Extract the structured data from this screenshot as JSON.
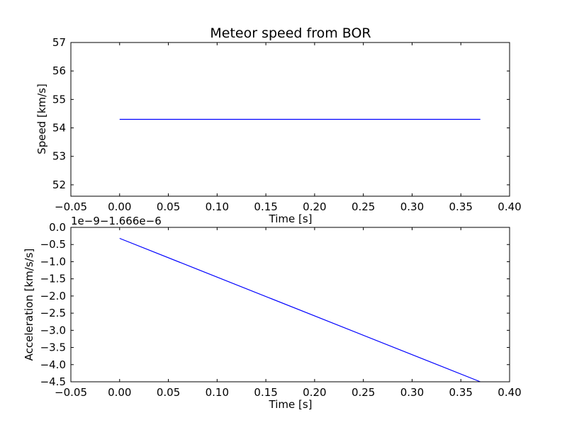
{
  "chart_data": [
    {
      "type": "line",
      "title": "Meteor speed from  BOR",
      "xlabel": "Time [s]",
      "ylabel": "Speed [km/s]",
      "xlim": [
        -0.05,
        0.4
      ],
      "ylim": [
        51.6,
        57
      ],
      "xticks": [
        -0.05,
        0.0,
        0.05,
        0.1,
        0.15,
        0.2,
        0.25,
        0.3,
        0.35,
        0.4
      ],
      "xtick_labels": [
        "−0.05",
        "0.00",
        "0.05",
        "0.10",
        "0.15",
        "0.20",
        "0.25",
        "0.30",
        "0.35",
        "0.40"
      ],
      "yticks": [
        52,
        53,
        54,
        55,
        56,
        57
      ],
      "ytick_labels": [
        "52",
        "53",
        "54",
        "55",
        "56",
        "57"
      ],
      "grid": false,
      "series": [
        {
          "color": "#0000ff",
          "x": [
            0.0,
            0.37
          ],
          "y": [
            54.3,
            54.3
          ]
        }
      ]
    },
    {
      "type": "line",
      "title": "",
      "xlabel": "Time [s]",
      "ylabel": "Acceleration [km/s/s]",
      "offset_text": "1e−9−1.666e−6",
      "xlim": [
        -0.05,
        0.4
      ],
      "ylim": [
        -4.5,
        0.0
      ],
      "xticks": [
        -0.05,
        0.0,
        0.05,
        0.1,
        0.15,
        0.2,
        0.25,
        0.3,
        0.35,
        0.4
      ],
      "xtick_labels": [
        "−0.05",
        "0.00",
        "0.05",
        "0.10",
        "0.15",
        "0.20",
        "0.25",
        "0.30",
        "0.35",
        "0.40"
      ],
      "yticks": [
        0.0,
        -0.5,
        -1.0,
        -1.5,
        -2.0,
        -2.5,
        -3.0,
        -3.5,
        -4.0,
        -4.5
      ],
      "ytick_labels": [
        "0.0",
        "−0.5",
        "−1.0",
        "−1.5",
        "−2.0",
        "−2.5",
        "−3.0",
        "−3.5",
        "−4.0",
        "−4.5"
      ],
      "grid": false,
      "series": [
        {
          "color": "#0000ff",
          "x": [
            0.0,
            0.37
          ],
          "y": [
            -0.32,
            -4.5
          ]
        }
      ]
    }
  ]
}
